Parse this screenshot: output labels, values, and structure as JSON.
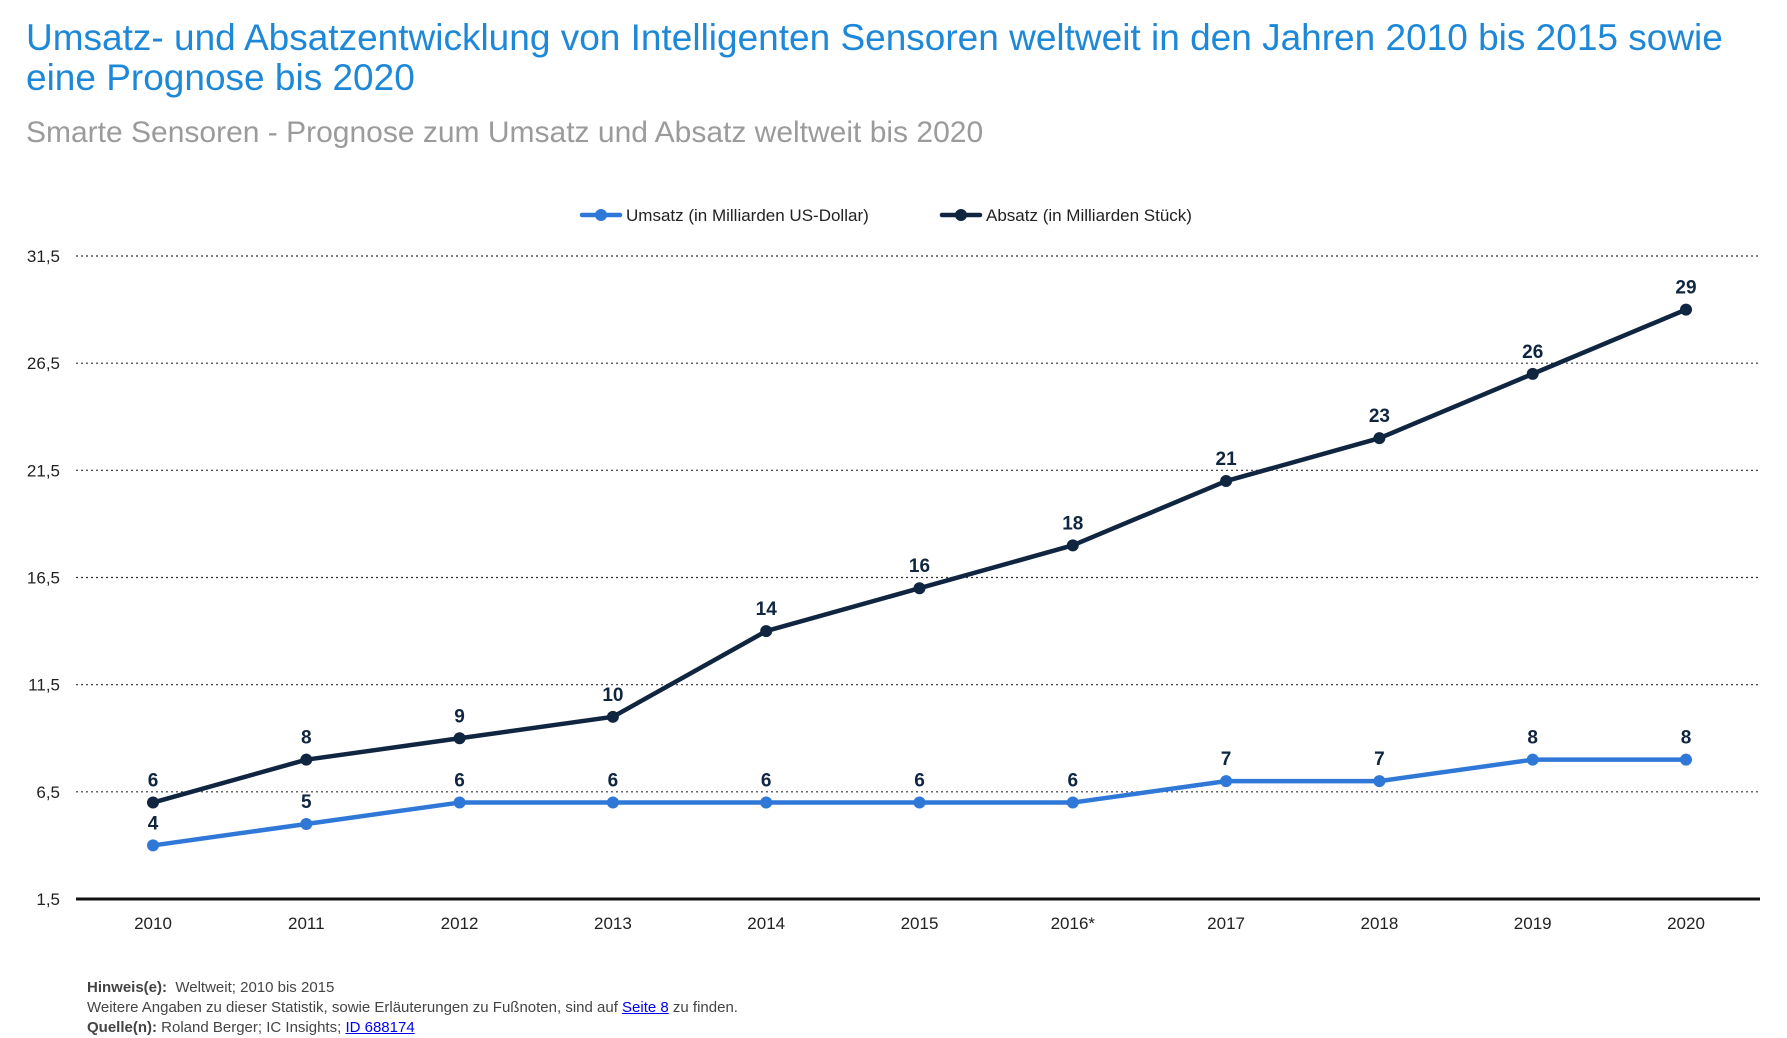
{
  "title": "Umsatz- und Absatzentwicklung von Intelligenten Sensoren weltweit in den Jahren 2010 bis 2015 sowie eine Prognose bis 2020",
  "subtitle": "Smarte Sensoren - Prognose zum Umsatz und Absatz weltweit bis 2020",
  "notes": {
    "hinweis_label": "Hinweis(e):",
    "hinweis_text": "Weltweit; 2010 bis 2015",
    "weitere_before": "Weitere Angaben zu dieser Statistik, sowie Erläuterungen zu Fußnoten, sind auf",
    "weitere_link": "Seite 8",
    "weitere_after": "zu finden.",
    "quelle_label": "Quelle(n):",
    "quelle_text": "Roland Berger; IC Insights;",
    "quelle_link": "ID 688174"
  },
  "colors": {
    "umsatz": "#2f78d8",
    "absatz": "#0f2540",
    "title": "#1e88d8",
    "subtitle": "#9b9b9b"
  },
  "chart_data": {
    "type": "line",
    "categories": [
      "2010",
      "2011",
      "2012",
      "2013",
      "2014",
      "2015",
      "2016*",
      "2017",
      "2018",
      "2019",
      "2020"
    ],
    "series": [
      {
        "name": "Umsatz (in Milliarden US-Dollar)",
        "values": [
          4,
          5,
          6,
          6,
          6,
          6,
          6,
          7,
          7,
          8,
          8
        ],
        "color": "#2f78d8",
        "labels_position": "below-first"
      },
      {
        "name": "Absatz (in Milliarden Stück)",
        "values": [
          6,
          8,
          9,
          10,
          14,
          16,
          18,
          21,
          23,
          26,
          29
        ],
        "color": "#0f2540"
      }
    ],
    "yticks": [
      "1,5",
      "6,5",
      "11,5",
      "16,5",
      "21,5",
      "26,5",
      "31,5"
    ],
    "ylim": [
      1.5,
      31.5
    ],
    "grid": "horizontal-dotted",
    "legend": "top-center"
  }
}
